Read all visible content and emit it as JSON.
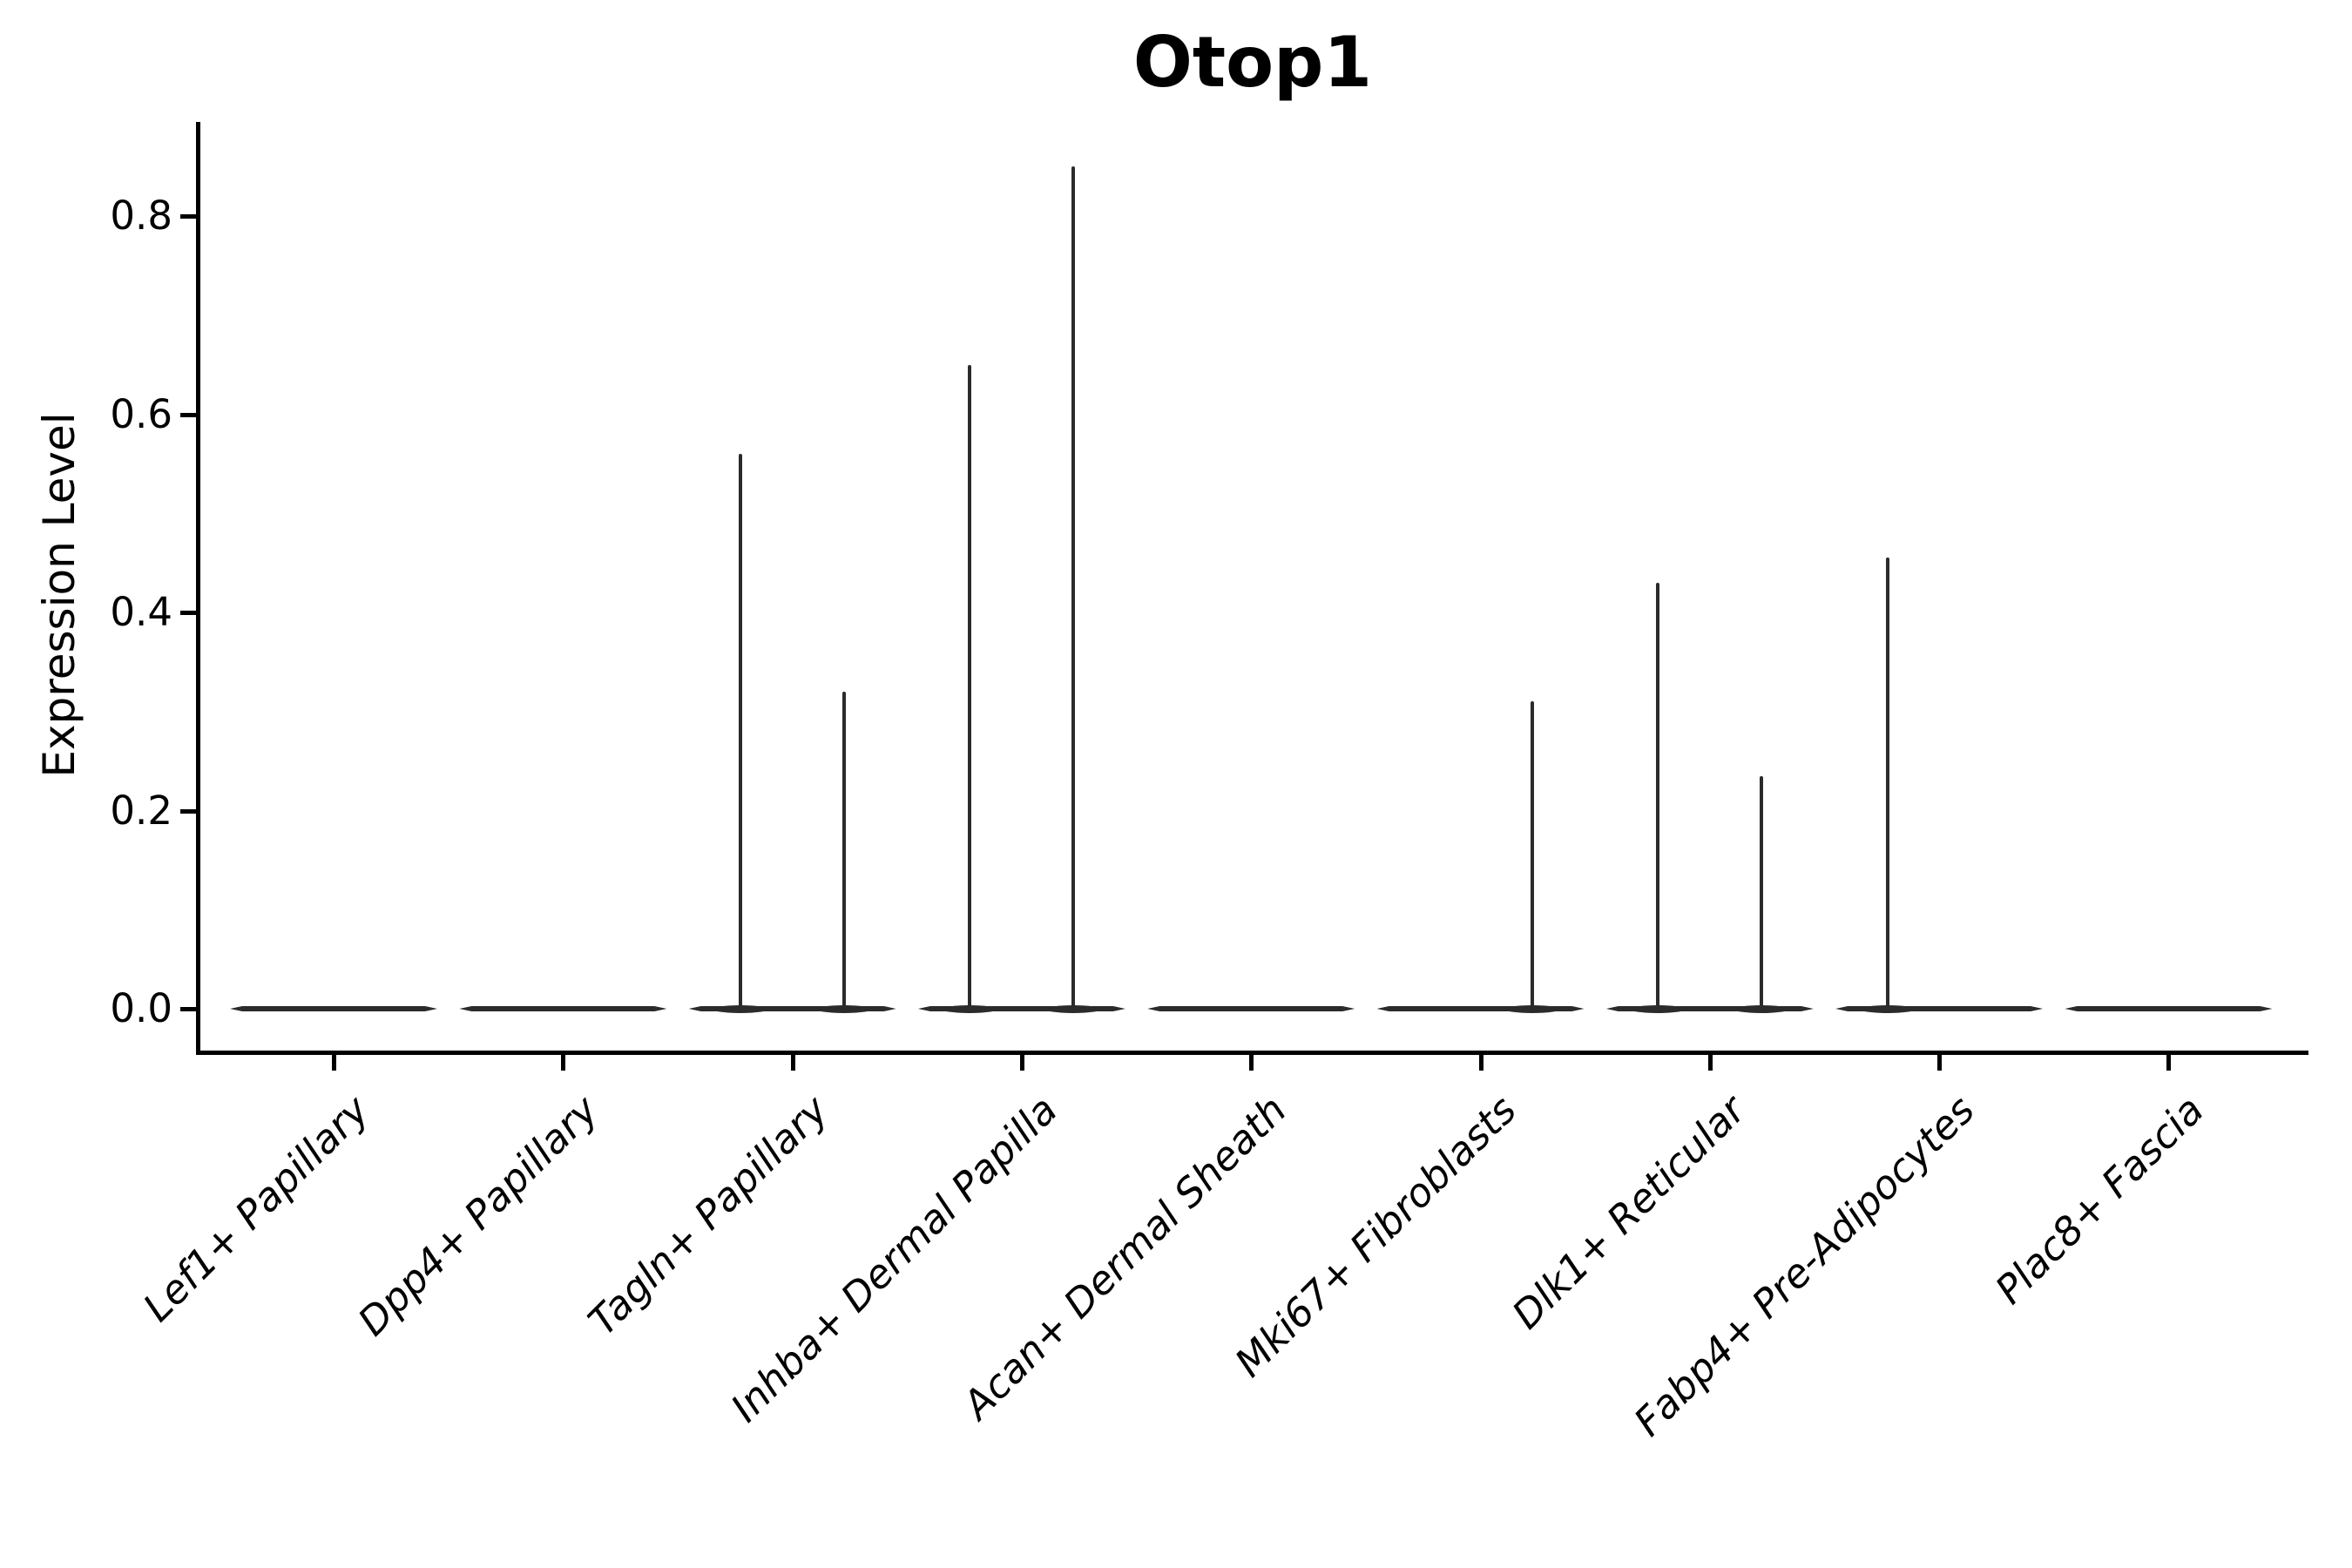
{
  "title": "Otop1",
  "y_axis": {
    "label": "Expression Level",
    "tick_labels": [
      "0.0",
      "0.2",
      "0.4",
      "0.6",
      "0.8"
    ],
    "tick_values": [
      0.0,
      0.2,
      0.4,
      0.6,
      0.8
    ]
  },
  "colors": {
    "background": "#ffffff",
    "axis": "#000000",
    "text": "#000000",
    "violin_line": "#2b2b2b"
  },
  "chart_data": {
    "type": "violin",
    "title": "Otop1",
    "xlabel": "",
    "ylabel": "Expression Level",
    "ylim": [
      -0.0425,
      0.8925
    ],
    "y_ticks": [
      0.0,
      0.2,
      0.4,
      0.6,
      0.8
    ],
    "grid": false,
    "legend": false,
    "x_tick_rotation_deg": 45,
    "x_tick_style": "italic",
    "note": "Violin plot of Otop1 expression;每 category shows a flat density line at 0 with thin spikes marking the few nonzero-expressing cells",
    "categories": [
      {
        "label": "Lef1+ Papillary",
        "baseline_value": 0.0,
        "spikes": []
      },
      {
        "label": "Dpp4+ Papillary",
        "baseline_value": 0.0,
        "spikes": []
      },
      {
        "label": "Tagln+ Papillary",
        "baseline_value": 0.0,
        "spikes": [
          {
            "x_offset_frac": -0.226,
            "value": 0.56
          },
          {
            "x_offset_frac": 0.226,
            "value": 0.32
          }
        ]
      },
      {
        "label": "Inhba+ Dermal Papilla",
        "baseline_value": 0.0,
        "spikes": [
          {
            "x_offset_frac": -0.226,
            "value": 0.65
          },
          {
            "x_offset_frac": 0.226,
            "value": 0.85
          }
        ]
      },
      {
        "label": "Acan+ Dermal Sheath",
        "baseline_value": 0.0,
        "spikes": []
      },
      {
        "label": "Mki67+ Fibroblasts",
        "baseline_value": 0.0,
        "spikes": [
          {
            "x_offset_frac": 0.226,
            "value": 0.31
          }
        ]
      },
      {
        "label": "Dlk1+ Reticular",
        "baseline_value": 0.0,
        "spikes": [
          {
            "x_offset_frac": -0.226,
            "value": 0.43
          },
          {
            "x_offset_frac": 0.226,
            "value": 0.235
          }
        ]
      },
      {
        "label": "Fabp4+ Pre-Adipocytes",
        "baseline_value": 0.0,
        "spikes": [
          {
            "x_offset_frac": -0.226,
            "value": 0.455
          }
        ]
      },
      {
        "label": "Plac8+ Fascia",
        "baseline_value": 0.0,
        "spikes": []
      }
    ]
  }
}
